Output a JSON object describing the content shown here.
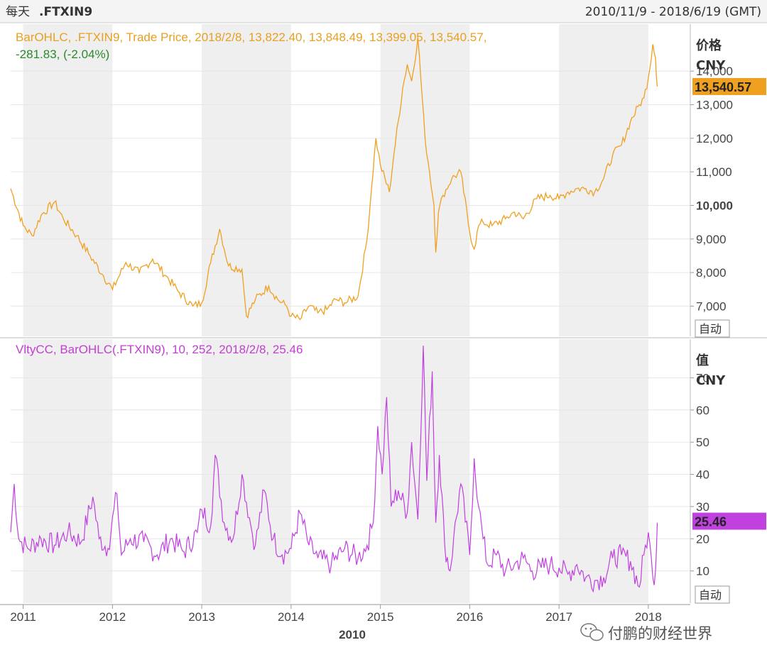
{
  "header": {
    "freq_label": "每天",
    "instrument": ".FTXIN9",
    "date_range": "2010/11/9 - 2018/6/19 (GMT)"
  },
  "watermark": "付鹏的财经世界",
  "colors": {
    "price_line": "#f0a020",
    "volatility_line": "#c040e0",
    "shaded_band": "#efefef",
    "grid": "#e6e6e6",
    "current_price_badge": "#f0a020",
    "current_vol_badge": "#c040e0"
  },
  "chart_data": [
    {
      "type": "line",
      "legend_line1": "BarOHLC, .FTXIN9, Trade Price, 2018/2/8, 13,822.40, 13,848.49, 13,399.05, 13,540.57,",
      "legend_line2": "-281.83, (-2.04%)",
      "axis_title": "价格",
      "axis_unit": "CNY",
      "auto_button": "自动",
      "current_value_label": "13,540.57",
      "current_value": 13540.57,
      "y_ticks": [
        "7,000",
        "8,000",
        "9,000",
        "10,000",
        "11,000",
        "12,000",
        "13,000",
        "14,000"
      ],
      "y_tick_values": [
        7000,
        8000,
        9000,
        10000,
        11000,
        12000,
        13000,
        14000
      ],
      "ylim": [
        6100,
        15400
      ],
      "x": [
        2010.86,
        2011.0,
        2011.1,
        2011.2,
        2011.35,
        2011.45,
        2011.6,
        2011.75,
        2011.9,
        2012.0,
        2012.15,
        2012.3,
        2012.45,
        2012.6,
        2012.75,
        2012.9,
        2013.0,
        2013.1,
        2013.2,
        2013.3,
        2013.45,
        2013.5,
        2013.6,
        2013.75,
        2013.85,
        2013.95,
        2014.0,
        2014.1,
        2014.2,
        2014.3,
        2014.4,
        2014.5,
        2014.6,
        2014.75,
        2014.85,
        2014.9,
        2014.95,
        2015.0,
        2015.1,
        2015.15,
        2015.25,
        2015.3,
        2015.35,
        2015.42,
        2015.5,
        2015.55,
        2015.6,
        2015.62,
        2015.65,
        2015.7,
        2015.8,
        2015.9,
        2016.0,
        2016.05,
        2016.1,
        2016.15,
        2016.25,
        2016.4,
        2016.5,
        2016.6,
        2016.75,
        2016.9,
        2017.0,
        2017.1,
        2017.2,
        2017.3,
        2017.4,
        2017.5,
        2017.6,
        2017.7,
        2017.8,
        2017.9,
        2017.95,
        2018.0,
        2018.05,
        2018.08,
        2018.1
      ],
      "series": [
        {
          "values": [
            10500,
            9400,
            9100,
            9700,
            10100,
            9600,
            9100,
            8500,
            7900,
            7500,
            8300,
            8000,
            8400,
            7900,
            7400,
            7000,
            7100,
            8300,
            9300,
            8200,
            8100,
            6700,
            7200,
            7600,
            7200,
            7000,
            6700,
            6600,
            7000,
            6800,
            6900,
            7200,
            7100,
            7300,
            9000,
            10500,
            12000,
            11200,
            10400,
            11500,
            13500,
            14200,
            13700,
            15000,
            12000,
            11000,
            10000,
            8600,
            9800,
            10300,
            10800,
            11000,
            9200,
            8700,
            9400,
            9500,
            9400,
            9600,
            9800,
            9600,
            10200,
            10300,
            10200,
            10400,
            10500,
            10500,
            10400,
            10800,
            11500,
            11800,
            12500,
            13000,
            13200,
            13800,
            14800,
            14400,
            13540
          ]
        }
      ]
    },
    {
      "type": "line",
      "legend_line1": "VltyCC, BarOHLC(.FTXIN9),  10, 252, 2018/2/8, 25.46",
      "axis_title": "值",
      "axis_unit": "CNY",
      "auto_button": "自动",
      "current_value_label": "25.46",
      "current_value": 25.46,
      "y_ticks": [
        "10",
        "20",
        "30",
        "40",
        "50",
        "60",
        "70"
      ],
      "y_tick_values": [
        10,
        20,
        30,
        40,
        50,
        60,
        70
      ],
      "ylim": [
        0,
        82
      ],
      "x_ticks": [
        "2011",
        "2012",
        "2013",
        "2014",
        "2015",
        "2016",
        "2017",
        "2018"
      ],
      "x_tick_values": [
        2011,
        2012,
        2013,
        2014,
        2015,
        2016,
        2017,
        2018
      ],
      "x_axis_label": "2010",
      "xlim": [
        2010.86,
        2018.47
      ],
      "shaded_years": [
        [
          2011,
          2012
        ],
        [
          2013,
          2014
        ],
        [
          2015,
          2016
        ],
        [
          2017,
          2018
        ]
      ],
      "x": [
        2010.86,
        2010.9,
        2010.95,
        2011.05,
        2011.2,
        2011.35,
        2011.5,
        2011.65,
        2011.78,
        2011.85,
        2011.95,
        2012.05,
        2012.1,
        2012.2,
        2012.35,
        2012.5,
        2012.65,
        2012.8,
        2012.95,
        2013.0,
        2013.1,
        2013.15,
        2013.25,
        2013.35,
        2013.45,
        2013.55,
        2013.6,
        2013.7,
        2013.8,
        2013.9,
        2014.0,
        2014.1,
        2014.2,
        2014.3,
        2014.45,
        2014.6,
        2014.75,
        2014.85,
        2014.92,
        2014.97,
        2015.02,
        2015.07,
        2015.12,
        2015.2,
        2015.3,
        2015.35,
        2015.42,
        2015.48,
        2015.52,
        2015.58,
        2015.62,
        2015.66,
        2015.72,
        2015.78,
        2015.82,
        2015.9,
        2016.0,
        2016.05,
        2016.1,
        2016.15,
        2016.2,
        2016.3,
        2016.4,
        2016.5,
        2016.6,
        2016.7,
        2016.8,
        2016.9,
        2017.0,
        2017.1,
        2017.2,
        2017.3,
        2017.4,
        2017.5,
        2017.6,
        2017.7,
        2017.8,
        2017.9,
        2017.95,
        2018.0,
        2018.05,
        2018.08,
        2018.1
      ],
      "series": [
        {
          "values": [
            22,
            37,
            20,
            17,
            20,
            18,
            22,
            19,
            33,
            20,
            17,
            34,
            15,
            20,
            19,
            15,
            20,
            16,
            22,
            29,
            24,
            46,
            25,
            20,
            40,
            24,
            18,
            35,
            20,
            15,
            17,
            28,
            18,
            14,
            12,
            17,
            14,
            18,
            25,
            55,
            40,
            64,
            30,
            35,
            28,
            50,
            26,
            80,
            38,
            72,
            25,
            46,
            18,
            10,
            20,
            37,
            15,
            45,
            30,
            20,
            12,
            15,
            10,
            12,
            14,
            10,
            11,
            12,
            11,
            9,
            12,
            8,
            7,
            8,
            14,
            15,
            13,
            5,
            15,
            22,
            8,
            10,
            25
          ]
        }
      ]
    }
  ]
}
